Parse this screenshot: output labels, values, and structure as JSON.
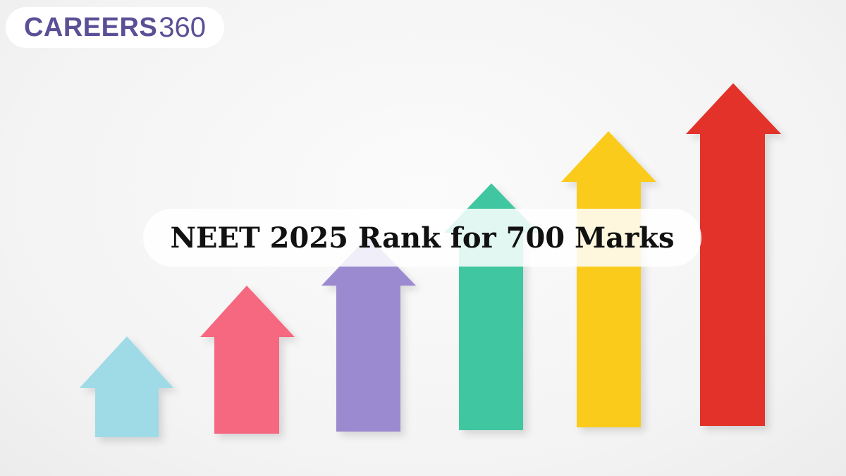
{
  "logo": {
    "bold": "CAREERS",
    "light": "360"
  },
  "title": "NEET 2025 Rank for 700 Marks",
  "arrow_colors": [
    "#9fdbe6",
    "#f5677f",
    "#9c8ad0",
    "#3fc6a0",
    "#fbcb1a",
    "#e3302b"
  ]
}
